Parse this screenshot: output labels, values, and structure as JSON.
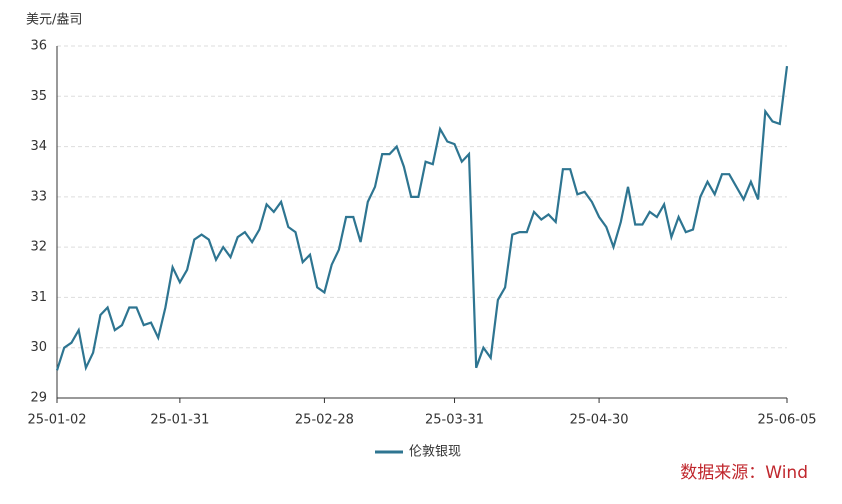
{
  "chart_data": {
    "type": "line",
    "y_label": "美元/盎司",
    "source": "数据来源：Wind",
    "categories": [
      "25-01-02",
      null,
      null,
      null,
      null,
      null,
      null,
      null,
      null,
      null,
      null,
      null,
      null,
      null,
      null,
      null,
      null,
      "25-01-31",
      null,
      null,
      null,
      null,
      null,
      null,
      null,
      null,
      null,
      null,
      null,
      null,
      null,
      null,
      null,
      null,
      null,
      null,
      null,
      "25-02-28",
      null,
      null,
      null,
      null,
      null,
      null,
      null,
      null,
      null,
      null,
      null,
      null,
      null,
      null,
      null,
      null,
      null,
      "25-03-31",
      null,
      null,
      null,
      null,
      null,
      null,
      null,
      null,
      null,
      null,
      null,
      null,
      null,
      null,
      null,
      null,
      null,
      null,
      null,
      "25-04-30",
      null,
      null,
      null,
      null,
      null,
      null,
      null,
      null,
      null,
      null,
      null,
      null,
      null,
      null,
      null,
      null,
      null,
      null,
      null,
      null,
      null,
      null,
      null,
      null,
      null,
      "25-06-05"
    ],
    "series": [
      {
        "name": "伦敦银现",
        "color": "#2e7591",
        "values": [
          29.55,
          30.0,
          30.1,
          30.35,
          29.6,
          29.9,
          30.65,
          30.8,
          30.35,
          30.45,
          30.8,
          30.8,
          30.45,
          30.5,
          30.2,
          30.8,
          31.6,
          31.3,
          31.55,
          32.15,
          32.25,
          32.15,
          31.75,
          32.0,
          31.8,
          32.2,
          32.3,
          32.1,
          32.35,
          32.85,
          32.7,
          32.9,
          32.4,
          32.3,
          31.7,
          31.85,
          31.2,
          31.1,
          31.65,
          31.95,
          32.6,
          32.6,
          32.1,
          32.9,
          33.2,
          33.85,
          33.85,
          34.0,
          33.6,
          33.0,
          33.0,
          33.7,
          33.65,
          34.35,
          34.1,
          34.05,
          33.7,
          33.85,
          29.6,
          30.0,
          29.8,
          30.95,
          31.2,
          32.25,
          32.3,
          32.3,
          32.7,
          32.55,
          32.65,
          32.5,
          33.55,
          33.55,
          33.05,
          33.1,
          32.9,
          32.6,
          32.4,
          32.0,
          32.5,
          33.2,
          32.45,
          32.45,
          32.7,
          32.6,
          32.85,
          32.2,
          32.6,
          32.3,
          32.35,
          33.0,
          33.3,
          33.05,
          33.45,
          33.45,
          33.2,
          32.95,
          33.3,
          32.95,
          34.7,
          34.5,
          34.45,
          35.6
        ]
      }
    ],
    "ylim": [
      29,
      36
    ],
    "yticks": [
      29,
      30,
      31,
      32,
      33,
      34,
      35,
      36
    ],
    "grid": true,
    "legend": "bottom"
  }
}
